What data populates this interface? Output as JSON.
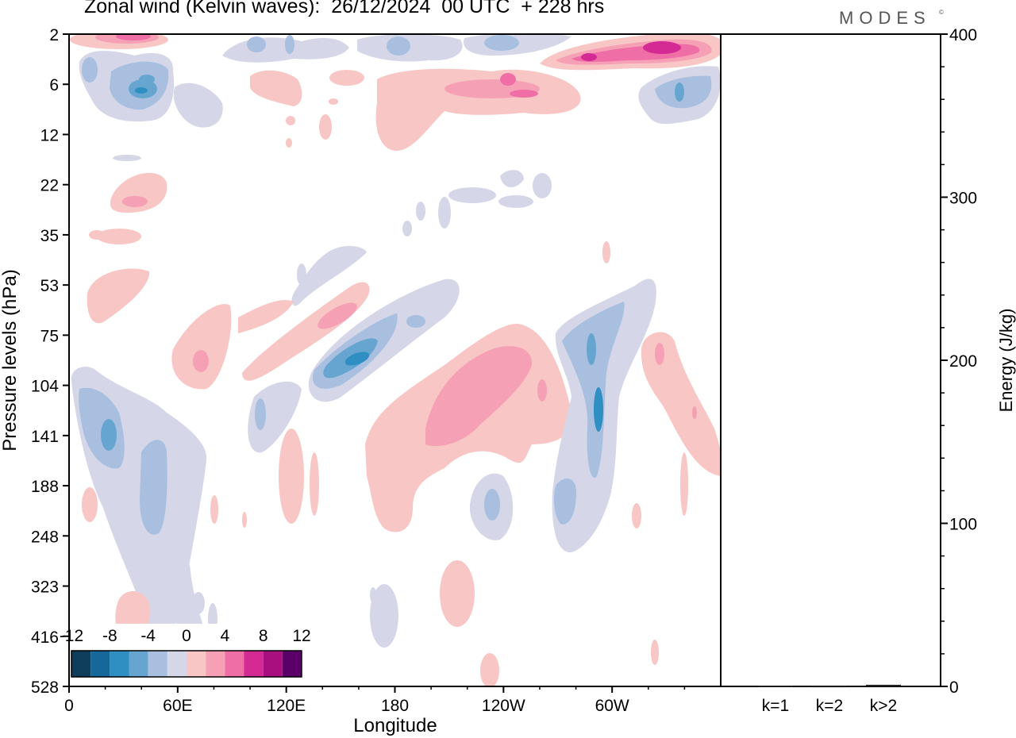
{
  "title": "Zonal wind (Kelvin waves):  26/12/2024  00 UTC  + 228 hrs",
  "brand": "MODES",
  "brand_mark": "©",
  "colors": {
    "neg12": "#0f3d5c",
    "neg10": "#17689a",
    "neg8": "#2f8ec2",
    "neg6": "#66a5cf",
    "neg4": "#a8bfdf",
    "neg2": "#d5d7e9",
    "zero": "#ffffff",
    "pos2": "#f8c6c4",
    "pos4": "#f6a0b6",
    "pos6": "#ee6ea5",
    "pos8": "#d32a94",
    "pos10": "#a9107f",
    "pos12": "#5c0069"
  },
  "chart_data": [
    {
      "type": "heatmap",
      "title": "Zonal wind (Kelvin waves):  26/12/2024  00 UTC  + 228 hrs",
      "xlabel": "Longitude",
      "ylabel": "Pressure levels (hPa)",
      "x_ticks": [
        "0",
        "60E",
        "120E",
        "180",
        "120W",
        "60W"
      ],
      "y_ticks": [
        "2",
        "6",
        "12",
        "22",
        "35",
        "53",
        "75",
        "104",
        "141",
        "188",
        "248",
        "323",
        "416",
        "528"
      ],
      "colorbar_labels": [
        "-12",
        "-8",
        "-4",
        "0",
        "4",
        "8",
        "12"
      ],
      "colorbar_levels": [
        -12,
        -10,
        -8,
        -6,
        -4,
        -2,
        0,
        2,
        4,
        6,
        8,
        10,
        12
      ]
    },
    {
      "type": "bar",
      "ylabel": "Energy (J/kg)",
      "ylim": [
        0,
        400
      ],
      "y_ticks": [
        "0",
        "100",
        "200",
        "300",
        "400"
      ],
      "categories": [
        "k=1",
        "k=2",
        "k>2"
      ],
      "values": [
        0.3,
        0.2,
        1.0
      ]
    }
  ]
}
